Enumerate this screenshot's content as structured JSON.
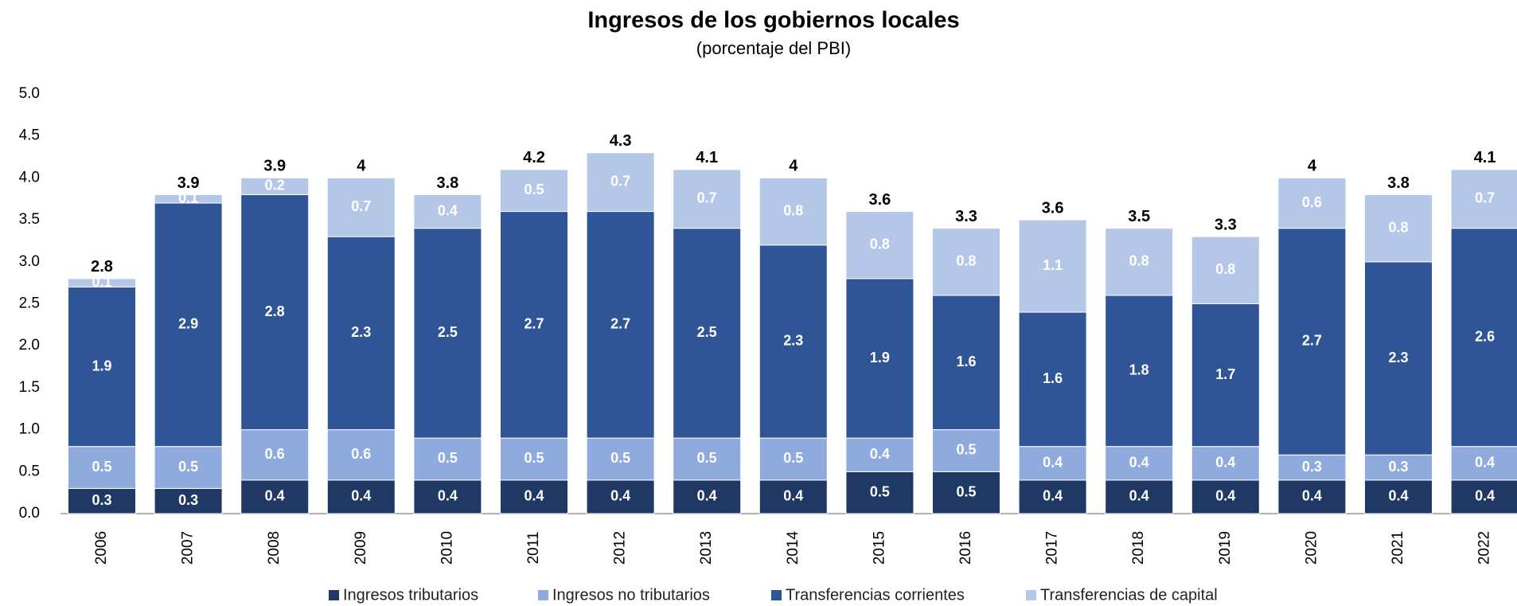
{
  "chart_data": {
    "type": "stacked_bar",
    "title": "Ingresos de los gobiernos locales",
    "subtitle": "(porcentaje del PBI)",
    "categories": [
      "2006",
      "2007",
      "2008",
      "2009",
      "2010",
      "2011",
      "2012",
      "2013",
      "2014",
      "2015",
      "2016",
      "2017",
      "2018",
      "2019",
      "2020",
      "2021",
      "2022"
    ],
    "series": [
      {
        "name": "Ingresos tributarios",
        "color": "#1f3864",
        "values": [
          0.3,
          0.3,
          0.4,
          0.4,
          0.4,
          0.4,
          0.4,
          0.4,
          0.4,
          0.5,
          0.5,
          0.4,
          0.4,
          0.4,
          0.4,
          0.4,
          0.4
        ]
      },
      {
        "name": "Ingresos no tributarios",
        "color": "#8faadc",
        "values": [
          0.5,
          0.5,
          0.6,
          0.6,
          0.5,
          0.5,
          0.5,
          0.5,
          0.5,
          0.4,
          0.5,
          0.4,
          0.4,
          0.4,
          0.3,
          0.3,
          0.4
        ]
      },
      {
        "name": "Transferencias corrientes",
        "color": "#2f5597",
        "values": [
          1.9,
          2.9,
          2.8,
          2.3,
          2.5,
          2.7,
          2.7,
          2.5,
          2.3,
          1.9,
          1.6,
          1.6,
          1.8,
          1.7,
          2.7,
          2.3,
          2.6
        ]
      },
      {
        "name": "Transferencias de capital",
        "color": "#b4c7e7",
        "values": [
          0.1,
          0.1,
          0.2,
          0.7,
          0.4,
          0.5,
          0.7,
          0.7,
          0.8,
          0.8,
          0.8,
          1.1,
          0.8,
          0.8,
          0.6,
          0.8,
          0.7
        ]
      }
    ],
    "totals": [
      2.8,
      3.9,
      3.9,
      4.0,
      3.8,
      4.2,
      4.3,
      4.1,
      4.0,
      3.6,
      3.3,
      3.6,
      3.5,
      3.3,
      4.0,
      3.8,
      4.1
    ],
    "ylim": [
      0,
      5
    ],
    "yticks": [
      {
        "value": 0,
        "label": "0.0"
      },
      0.5,
      {
        "value": 1,
        "label": "1.0"
      },
      1.5,
      {
        "value": 2,
        "label": "2.0"
      },
      2.5,
      {
        "value": 3,
        "label": "3.0"
      },
      3.5,
      {
        "value": 4,
        "label": "4.0"
      },
      4.5,
      {
        "value": 5,
        "label": "5.0"
      }
    ],
    "grid": false,
    "legend": "bottom"
  }
}
